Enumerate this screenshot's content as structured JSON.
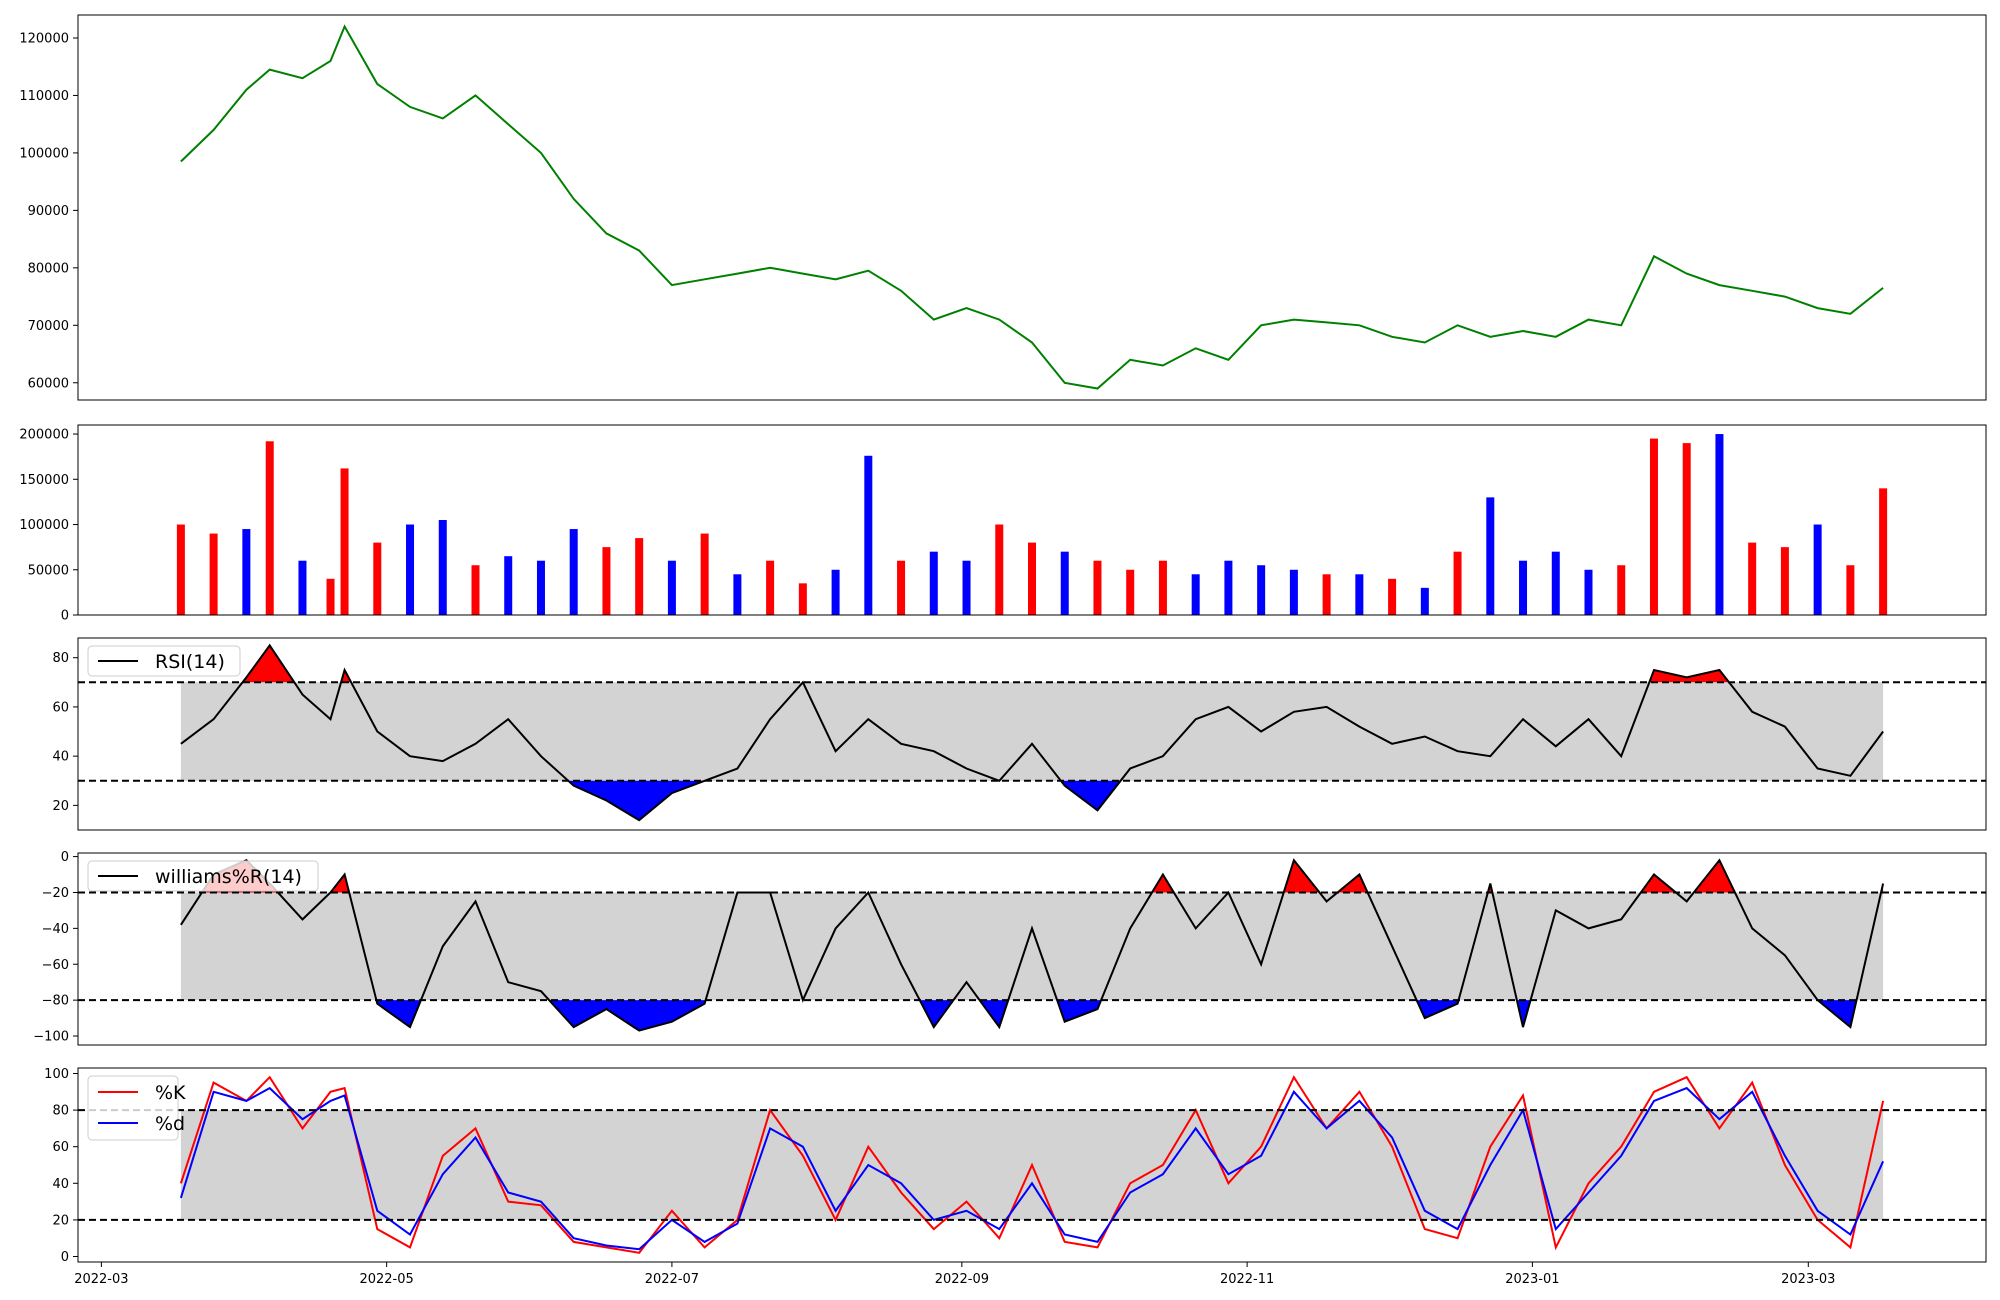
{
  "chart_data": [
    {
      "panel": "price",
      "type": "line",
      "color": "#008000",
      "ylim": [
        57000,
        124000
      ],
      "yticks": [
        60000,
        70000,
        80000,
        90000,
        100000,
        110000,
        120000
      ],
      "series": [
        {
          "x": [
            "2022-03-18",
            "2022-03-25",
            "2022-04-01",
            "2022-04-06",
            "2022-04-13",
            "2022-04-19",
            "2022-04-22",
            "2022-04-29",
            "2022-05-06",
            "2022-05-13",
            "2022-05-20",
            "2022-05-27",
            "2022-06-03",
            "2022-06-10",
            "2022-06-17",
            "2022-06-24",
            "2022-07-01",
            "2022-07-08",
            "2022-07-15",
            "2022-07-22",
            "2022-07-29",
            "2022-08-05",
            "2022-08-12",
            "2022-08-19",
            "2022-08-26",
            "2022-09-02",
            "2022-09-09",
            "2022-09-16",
            "2022-09-23",
            "2022-09-30",
            "2022-10-07",
            "2022-10-14",
            "2022-10-21",
            "2022-10-28",
            "2022-11-04",
            "2022-11-11",
            "2022-11-18",
            "2022-11-25",
            "2022-12-02",
            "2022-12-09",
            "2022-12-16",
            "2022-12-23",
            "2022-12-30",
            "2023-01-06",
            "2023-01-13",
            "2023-01-20",
            "2023-01-27",
            "2023-02-03",
            "2023-02-10",
            "2023-02-17",
            "2023-02-24",
            "2023-03-03",
            "2023-03-10",
            "2023-03-17"
          ],
          "values": [
            98500,
            104000,
            111000,
            114500,
            113000,
            116000,
            122000,
            112000,
            108000,
            106000,
            110000,
            105000,
            100000,
            92000,
            86000,
            83000,
            77000,
            78000,
            79000,
            80000,
            79000,
            78000,
            79500,
            76000,
            71000,
            73000,
            71000,
            67000,
            60000,
            59000,
            64000,
            63000,
            66000,
            64000,
            70000,
            71000,
            70500,
            70000,
            68000,
            67000,
            70000,
            68000,
            69000,
            68000,
            71000,
            70000,
            82000,
            79000,
            77000,
            76000,
            75000,
            73000,
            72000,
            76500
          ]
        }
      ]
    },
    {
      "panel": "volume",
      "type": "bar",
      "ylim": [
        0,
        210000
      ],
      "yticks": [
        0,
        50000,
        100000,
        150000,
        200000
      ],
      "colors": {
        "up": "#ff0000",
        "down": "#0000ff",
        "flat": "#000000"
      },
      "series": [
        {
          "x": [
            "2022-03-18",
            "2022-03-25",
            "2022-04-01",
            "2022-04-06",
            "2022-04-13",
            "2022-04-19",
            "2022-04-22",
            "2022-04-29",
            "2022-05-06",
            "2022-05-13",
            "2022-05-20",
            "2022-05-27",
            "2022-06-03",
            "2022-06-10",
            "2022-06-17",
            "2022-06-24",
            "2022-07-01",
            "2022-07-08",
            "2022-07-15",
            "2022-07-22",
            "2022-07-29",
            "2022-08-05",
            "2022-08-12",
            "2022-08-19",
            "2022-08-26",
            "2022-09-02",
            "2022-09-09",
            "2022-09-16",
            "2022-09-23",
            "2022-09-30",
            "2022-10-07",
            "2022-10-14",
            "2022-10-21",
            "2022-10-28",
            "2022-11-04",
            "2022-11-11",
            "2022-11-18",
            "2022-11-25",
            "2022-12-02",
            "2022-12-09",
            "2022-12-16",
            "2022-12-23",
            "2022-12-30",
            "2023-01-06",
            "2023-01-13",
            "2023-01-20",
            "2023-01-27",
            "2023-02-03",
            "2023-02-10",
            "2023-02-17",
            "2023-02-24",
            "2023-03-03",
            "2023-03-10",
            "2023-03-17"
          ],
          "values": [
            100000,
            90000,
            95000,
            192000,
            60000,
            40000,
            162000,
            80000,
            100000,
            105000,
            55000,
            65000,
            60000,
            95000,
            75000,
            85000,
            60000,
            90000,
            45000,
            60000,
            35000,
            50000,
            176000,
            60000,
            70000,
            60000,
            100000,
            80000,
            70000,
            60000,
            50000,
            60000,
            45000,
            60000,
            55000,
            50000,
            45000,
            45000,
            40000,
            30000,
            70000,
            130000,
            60000,
            70000,
            50000,
            55000,
            195000,
            190000,
            200000,
            80000,
            75000,
            100000,
            55000,
            140000
          ],
          "direction": [
            "up",
            "up",
            "down",
            "up",
            "down",
            "up",
            "up",
            "up",
            "down",
            "down",
            "up",
            "down",
            "down",
            "down",
            "up",
            "up",
            "down",
            "up",
            "down",
            "up",
            "up",
            "down",
            "down",
            "up",
            "down",
            "down",
            "up",
            "up",
            "down",
            "up",
            "up",
            "up",
            "down",
            "down",
            "down",
            "down",
            "up",
            "down",
            "up",
            "down",
            "up",
            "down",
            "down",
            "down",
            "down",
            "up",
            "up",
            "up",
            "down",
            "up",
            "up",
            "down",
            "up",
            "up"
          ]
        }
      ]
    },
    {
      "panel": "rsi",
      "type": "line",
      "legend": "RSI(14)",
      "color": "#000000",
      "ylim": [
        10,
        88
      ],
      "yticks": [
        20,
        40,
        60,
        80
      ],
      "band": [
        30,
        70
      ],
      "series": [
        {
          "x": [
            "2022-03-18",
            "2022-03-25",
            "2022-04-01",
            "2022-04-06",
            "2022-04-13",
            "2022-04-19",
            "2022-04-22",
            "2022-04-29",
            "2022-05-06",
            "2022-05-13",
            "2022-05-20",
            "2022-05-27",
            "2022-06-03",
            "2022-06-10",
            "2022-06-17",
            "2022-06-24",
            "2022-07-01",
            "2022-07-08",
            "2022-07-15",
            "2022-07-22",
            "2022-07-29",
            "2022-08-05",
            "2022-08-12",
            "2022-08-19",
            "2022-08-26",
            "2022-09-02",
            "2022-09-09",
            "2022-09-16",
            "2022-09-23",
            "2022-09-30",
            "2022-10-07",
            "2022-10-14",
            "2022-10-21",
            "2022-10-28",
            "2022-11-04",
            "2022-11-11",
            "2022-11-18",
            "2022-11-25",
            "2022-12-02",
            "2022-12-09",
            "2022-12-16",
            "2022-12-23",
            "2022-12-30",
            "2023-01-06",
            "2023-01-13",
            "2023-01-20",
            "2023-01-27",
            "2023-02-03",
            "2023-02-10",
            "2023-02-17",
            "2023-02-24",
            "2023-03-03",
            "2023-03-10",
            "2023-03-17"
          ],
          "values": [
            45,
            55,
            72,
            85,
            65,
            55,
            75,
            50,
            40,
            38,
            45,
            55,
            40,
            28,
            22,
            14,
            25,
            30,
            35,
            55,
            70,
            42,
            55,
            45,
            42,
            35,
            30,
            45,
            28,
            18,
            35,
            40,
            55,
            60,
            50,
            58,
            60,
            52,
            45,
            48,
            42,
            40,
            55,
            44,
            55,
            40,
            75,
            72,
            75,
            58,
            52,
            35,
            32,
            50
          ]
        }
      ]
    },
    {
      "panel": "williams",
      "type": "line",
      "legend": "williams%R(14)",
      "color": "#000000",
      "ylim": [
        -105,
        2
      ],
      "yticks": [
        -100,
        -80,
        -60,
        -40,
        -20,
        0
      ],
      "band": [
        -80,
        -20
      ],
      "series": [
        {
          "x": [
            "2022-03-18",
            "2022-03-25",
            "2022-04-01",
            "2022-04-06",
            "2022-04-13",
            "2022-04-19",
            "2022-04-22",
            "2022-04-29",
            "2022-05-06",
            "2022-05-13",
            "2022-05-20",
            "2022-05-27",
            "2022-06-03",
            "2022-06-10",
            "2022-06-17",
            "2022-06-24",
            "2022-07-01",
            "2022-07-08",
            "2022-07-15",
            "2022-07-22",
            "2022-07-29",
            "2022-08-05",
            "2022-08-12",
            "2022-08-19",
            "2022-08-26",
            "2022-09-02",
            "2022-09-09",
            "2022-09-16",
            "2022-09-23",
            "2022-09-30",
            "2022-10-07",
            "2022-10-14",
            "2022-10-21",
            "2022-10-28",
            "2022-11-04",
            "2022-11-11",
            "2022-11-18",
            "2022-11-25",
            "2022-12-02",
            "2022-12-09",
            "2022-12-16",
            "2022-12-23",
            "2022-12-30",
            "2023-01-06",
            "2023-01-13",
            "2023-01-20",
            "2023-01-27",
            "2023-02-03",
            "2023-02-10",
            "2023-02-17",
            "2023-02-24",
            "2023-03-03",
            "2023-03-10",
            "2023-03-17"
          ],
          "values": [
            -38,
            -10,
            -2,
            -15,
            -35,
            -20,
            -10,
            -82,
            -95,
            -50,
            -25,
            -70,
            -75,
            -95,
            -85,
            -97,
            -92,
            -82,
            -20,
            -20,
            -80,
            -40,
            -20,
            -60,
            -95,
            -70,
            -95,
            -40,
            -92,
            -85,
            -40,
            -10,
            -40,
            -20,
            -60,
            -2,
            -25,
            -10,
            -50,
            -90,
            -82,
            -15,
            -95,
            -30,
            -40,
            -35,
            -10,
            -25,
            -2,
            -40,
            -55,
            -80,
            -95,
            -15
          ]
        }
      ]
    },
    {
      "panel": "stochastic",
      "type": "line",
      "ylim": [
        -3,
        103
      ],
      "yticks": [
        0,
        20,
        40,
        60,
        80,
        100
      ],
      "band": [
        20,
        80
      ],
      "xticks": [
        "2022-03",
        "2022-05",
        "2022-07",
        "2022-09",
        "2022-11",
        "2023-01",
        "2023-03"
      ],
      "series": [
        {
          "name": "%K",
          "color": "#ff0000",
          "values": [
            40,
            95,
            85,
            98,
            70,
            90,
            92,
            15,
            5,
            55,
            70,
            30,
            28,
            8,
            5,
            2,
            25,
            5,
            20,
            80,
            55,
            20,
            60,
            35,
            15,
            30,
            10,
            50,
            8,
            5,
            40,
            50,
            80,
            40,
            60,
            98,
            70,
            90,
            60,
            15,
            10,
            60,
            88,
            5,
            40,
            60,
            90,
            98,
            70,
            95,
            50,
            20,
            5,
            85
          ]
        },
        {
          "name": "%d",
          "color": "#0000ff",
          "values": [
            32,
            90,
            85,
            92,
            75,
            85,
            88,
            25,
            12,
            45,
            65,
            35,
            30,
            10,
            6,
            4,
            20,
            8,
            18,
            70,
            60,
            25,
            50,
            40,
            20,
            25,
            15,
            40,
            12,
            8,
            35,
            45,
            70,
            45,
            55,
            90,
            70,
            85,
            65,
            25,
            15,
            50,
            80,
            15,
            35,
            55,
            85,
            92,
            75,
            90,
            55,
            25,
            12,
            52
          ]
        }
      ]
    }
  ]
}
